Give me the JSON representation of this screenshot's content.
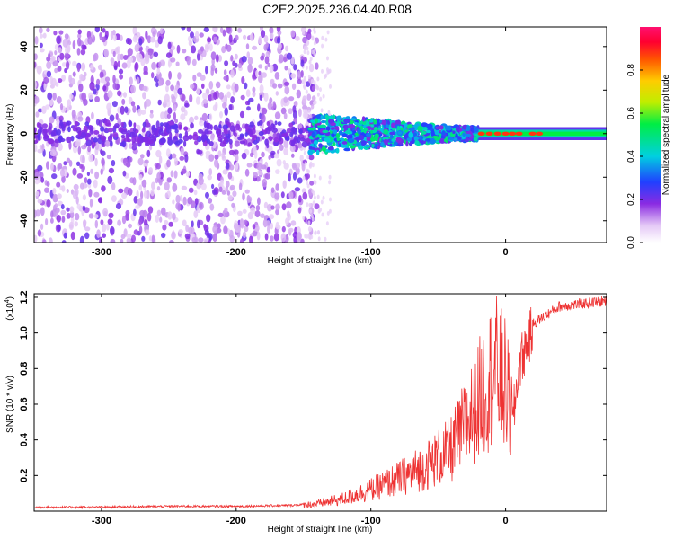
{
  "title": "C2E2.2025.236.04.40.R08",
  "chart_data": [
    {
      "type": "heatmap",
      "xlabel": "Height of straight line (km)",
      "ylabel": "Frequency (Hz)",
      "xlim": [
        -350,
        75
      ],
      "ylim": [
        -50,
        49
      ],
      "x_ticks": [
        "-300",
        "-200",
        "-100",
        "0"
      ],
      "y_ticks": [
        "40",
        "20",
        "0",
        "-20",
        "-40"
      ],
      "colorbar": {
        "label": "Normalized spectral amplitude",
        "range": [
          0,
          1
        ],
        "ticks": [
          "0.0",
          "0.2",
          "0.4",
          "0.6",
          "0.8"
        ]
      },
      "regions": [
        {
          "x": [
            -350,
            -145
          ],
          "description": "sparse purple noise across full frequency band"
        },
        {
          "x": [
            -145,
            -20
          ],
          "freq_band": [
            -10,
            10
          ],
          "amplitude": [
            0.2,
            0.5
          ]
        },
        {
          "x": [
            -20,
            75
          ],
          "freq_band": [
            -3,
            3
          ],
          "amplitude": [
            0.4,
            0.95
          ]
        }
      ]
    },
    {
      "type": "line",
      "xlabel": "Height of straight line (km)",
      "ylabel": "SNR (10 * v/v)",
      "y_scale_label": "(x10",
      "y_scale_exp": "4",
      "xlim": [
        -350,
        75
      ],
      "ylim": [
        0,
        1.22
      ],
      "x_ticks": [
        "-300",
        "-200",
        "-100",
        "0"
      ],
      "y_ticks": [
        "0.2",
        "0.4",
        "0.6",
        "0.8",
        "1.0",
        "1.2"
      ],
      "color": "#ee3333",
      "series_profile": {
        "x": [
          -350,
          -300,
          -250,
          -200,
          -160,
          -140,
          -120,
          -100,
          -80,
          -60,
          -40,
          -25,
          -15,
          -8,
          0,
          5,
          10,
          20,
          40,
          75
        ],
        "y": [
          0.02,
          0.02,
          0.025,
          0.025,
          0.03,
          0.04,
          0.07,
          0.12,
          0.18,
          0.25,
          0.35,
          0.55,
          0.7,
          0.8,
          0.7,
          0.5,
          0.85,
          1.05,
          1.15,
          1.18
        ]
      }
    }
  ]
}
